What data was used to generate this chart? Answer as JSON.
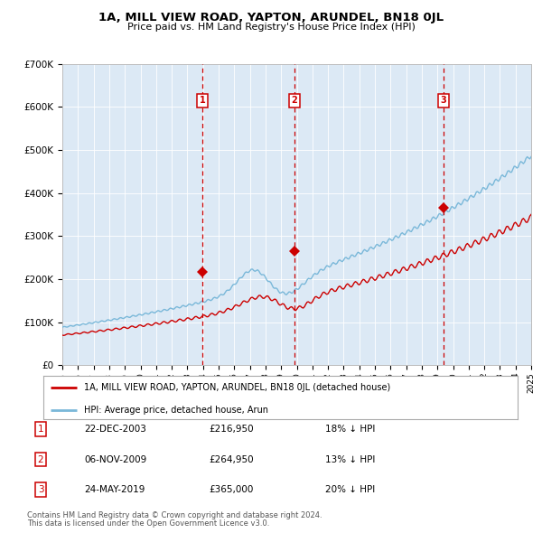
{
  "title": "1A, MILL VIEW ROAD, YAPTON, ARUNDEL, BN18 0JL",
  "subtitle": "Price paid vs. HM Land Registry's House Price Index (HPI)",
  "plot_bg_color": "#dce9f5",
  "hpi_color": "#7ab8d9",
  "price_color": "#cc0000",
  "marker_color": "#cc0000",
  "dashed_color": "#cc0000",
  "ylim": [
    0,
    700000
  ],
  "yticks": [
    0,
    100000,
    200000,
    300000,
    400000,
    500000,
    600000,
    700000
  ],
  "ytick_labels": [
    "£0",
    "£100K",
    "£200K",
    "£300K",
    "£400K",
    "£500K",
    "£600K",
    "£700K"
  ],
  "year_start": 1995,
  "year_end": 2025,
  "sales": [
    {
      "label": "1",
      "date": "22-DEC-2003",
      "year": 2003.97,
      "price": 216950,
      "pct": "18%",
      "dir": "↓"
    },
    {
      "label": "2",
      "date": "06-NOV-2009",
      "year": 2009.85,
      "price": 264950,
      "pct": "13%",
      "dir": "↓"
    },
    {
      "label": "3",
      "date": "24-MAY-2019",
      "year": 2019.38,
      "price": 365000,
      "pct": "20%",
      "dir": "↓"
    }
  ],
  "legend_label_red": "1A, MILL VIEW ROAD, YAPTON, ARUNDEL, BN18 0JL (detached house)",
  "legend_label_blue": "HPI: Average price, detached house, Arun",
  "footer1": "Contains HM Land Registry data © Crown copyright and database right 2024.",
  "footer2": "This data is licensed under the Open Government Licence v3.0."
}
